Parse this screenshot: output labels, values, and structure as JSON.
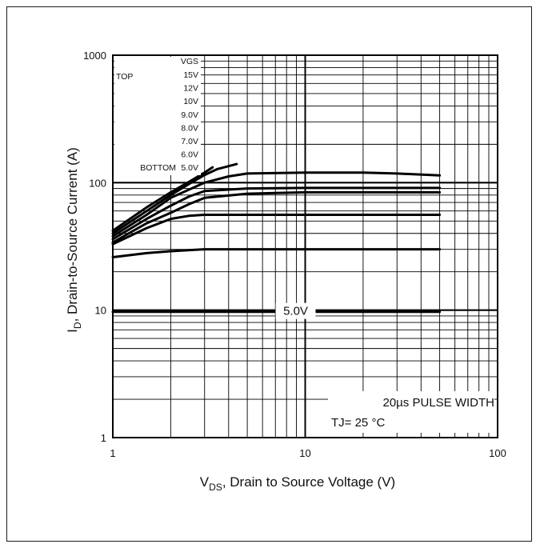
{
  "chart_data": {
    "type": "line",
    "title": "",
    "xlabel": "V",
    "xlabel_sub": "DS",
    "xlabel_rest": ", Drain to Source Voltage (V)",
    "ylabel_main": "I",
    "ylabel_sub": "D",
    "ylabel_rest": ", Drain-to-Source Current (A)",
    "x_scale": "log",
    "y_scale": "log",
    "xlim": [
      1,
      100
    ],
    "ylim": [
      1,
      1000
    ],
    "x_ticks": [
      {
        "value": 1,
        "label": "1"
      },
      {
        "value": 10,
        "label": "10"
      },
      {
        "value": 100,
        "label": "100"
      }
    ],
    "y_ticks": [
      {
        "value": 1,
        "label": "1"
      },
      {
        "value": 10,
        "label": "10"
      },
      {
        "value": 100,
        "label": "100"
      },
      {
        "value": 1000,
        "label": "1000"
      }
    ],
    "grid": true,
    "legend": {
      "placement": "top-left",
      "top_label": "TOP",
      "bottom_label": "BOTTOM",
      "header": "VGS",
      "entries": [
        "15V",
        "12V",
        "10V",
        "9.0V",
        "8.0V",
        "7.0V",
        "6.0V",
        "5.0V"
      ]
    },
    "series": [
      {
        "x": [
          1,
          1.5,
          2,
          2.5,
          3,
          3.3
        ],
        "y": [
          42,
          64,
          84,
          102,
          120,
          132
        ]
      },
      {
        "x": [
          1,
          1.5,
          2,
          2.5,
          3,
          3.5,
          4.4
        ],
        "y": [
          40,
          60,
          80,
          98,
          115,
          128,
          140
        ]
      },
      {
        "x": [
          1,
          1.5,
          2,
          3,
          4,
          5,
          10,
          20,
          30,
          50
        ],
        "y": [
          38,
          56,
          76,
          100,
          112,
          118,
          120,
          120,
          118,
          114
        ]
      },
      {
        "x": [
          1,
          1.5,
          2,
          2.5,
          3,
          5,
          10,
          20,
          50
        ],
        "y": [
          36,
          52,
          66,
          78,
          86,
          90,
          91,
          91,
          91
        ]
      },
      {
        "x": [
          1,
          1.5,
          2,
          2.5,
          3,
          5,
          10,
          20,
          50
        ],
        "y": [
          34,
          48,
          58,
          68,
          76,
          82,
          84,
          84,
          84
        ]
      },
      {
        "x": [
          1,
          1.5,
          2,
          2.5,
          3,
          5,
          10,
          20,
          50
        ],
        "y": [
          33,
          44,
          52,
          55,
          56,
          56,
          56,
          56,
          56
        ]
      },
      {
        "x": [
          1,
          1.5,
          2,
          3,
          5,
          10,
          20,
          50
        ],
        "y": [
          26,
          28,
          29,
          30,
          30,
          30,
          30,
          30
        ]
      },
      {
        "x": [
          1,
          2,
          5,
          10,
          20,
          50
        ],
        "y": [
          9.7,
          9.7,
          9.7,
          9.7,
          9.7,
          9.7
        ]
      }
    ],
    "annotations": [
      {
        "text": "5.0V",
        "x": 10,
        "y": 10
      },
      {
        "text": "20µs PULSE WIDTH",
        "x": 100,
        "y": 2
      },
      {
        "text": "TJ= 25 °C",
        "x": 100,
        "y": 1.35
      }
    ]
  }
}
